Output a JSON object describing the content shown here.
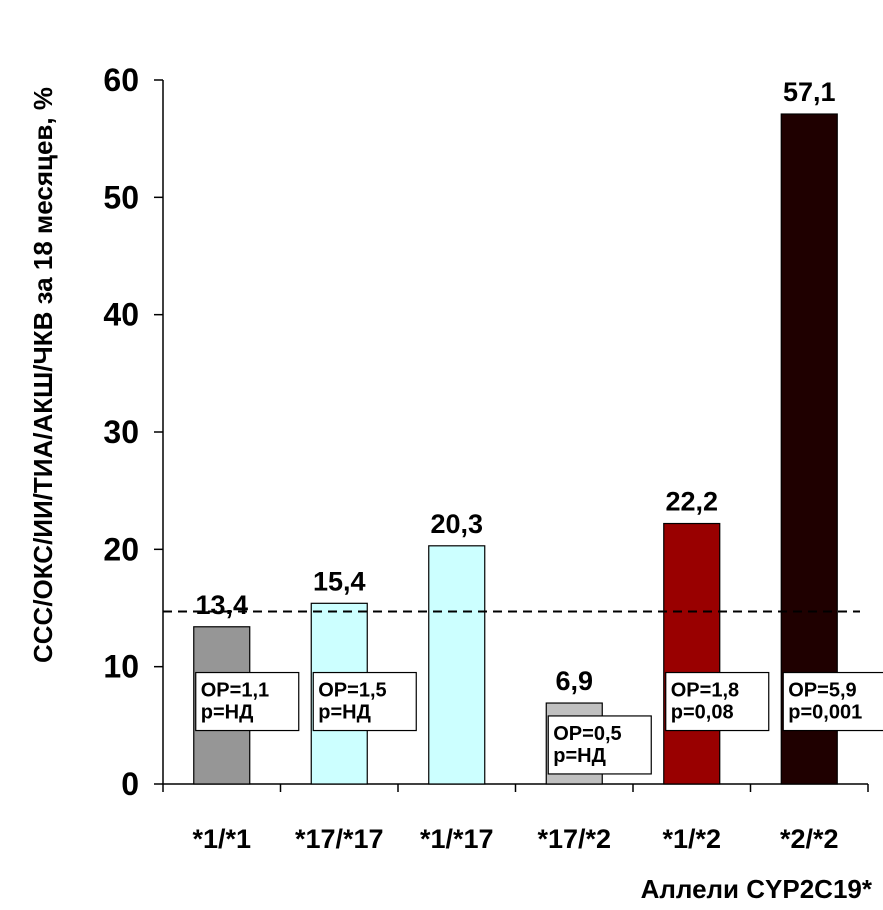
{
  "chart_data": {
    "type": "bar",
    "categories": [
      "*1/*1",
      "*17/*17",
      "*1/*17",
      "*17/*2",
      "*1/*2",
      "*2/*2"
    ],
    "values": [
      13.4,
      15.4,
      20.3,
      6.9,
      22.2,
      57.1
    ],
    "value_labels": [
      "13,4",
      "15,4",
      "20,3",
      "6,9",
      "22,2",
      "57,1"
    ],
    "bar_colors": [
      "#969696",
      "#ccffff",
      "#ccffff",
      "#c0c0c0",
      "#990000",
      "#1f0000"
    ],
    "xlabel": "Аллели CYP2C19*",
    "ylabel": "ССС/ОКС/ИИ/ТИА/АКШ/ЧКВ за 18 месяцев, %",
    "ylim": [
      0,
      60
    ],
    "yticks": [
      0,
      10,
      20,
      30,
      40,
      50,
      60
    ],
    "reference_line": {
      "value": 14.7,
      "style": "dashed"
    },
    "annotations": [
      {
        "category": "*1/*1",
        "line1": "ОР=1,1",
        "line2": "р=НД",
        "level": 9.5
      },
      {
        "category": "*17/*17",
        "line1": "ОР=1,5",
        "line2": "р=НД",
        "level": 9.5
      },
      {
        "category": "*17/*2",
        "line1": "ОР=0,5",
        "line2": "р=НД",
        "level": 5.8
      },
      {
        "category": "*1/*2",
        "line1": "ОР=1,8",
        "line2": "р=0,08",
        "level": 9.5
      },
      {
        "category": "*2/*2",
        "line1": "ОР=5,9",
        "line2": "р=0,001",
        "level": 9.5
      }
    ],
    "grid": false,
    "legend": "none"
  }
}
